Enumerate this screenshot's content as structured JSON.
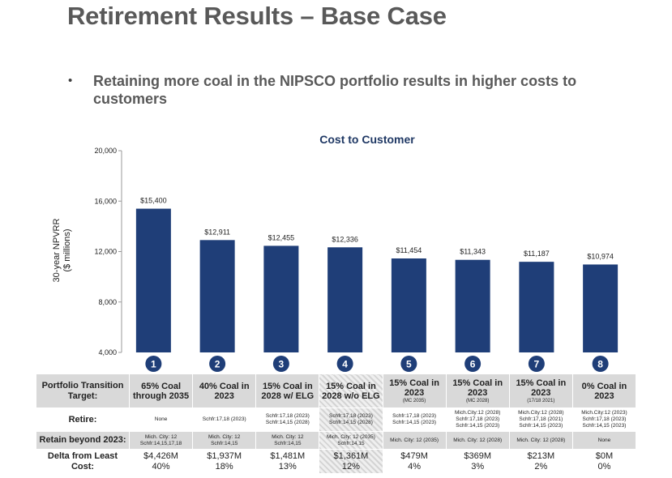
{
  "page": {
    "title": "Retirement Results – Base Case",
    "bullet_symbol": "•",
    "bullet": "Retaining more coal in the NIPSCO portfolio results in higher costs to customers"
  },
  "chart_data": {
    "type": "bar",
    "title": "Cost to Customer",
    "ylabel": "30-year NPVRR\n($ millions)",
    "xlabel": "",
    "ylim": [
      4000,
      20000
    ],
    "yticks": [
      4000,
      8000,
      12000,
      16000,
      20000
    ],
    "ytick_labels": [
      "4,000",
      "8,000",
      "12,000",
      "16,000",
      "20,000"
    ],
    "categories": [
      "1",
      "2",
      "3",
      "4",
      "5",
      "6",
      "7",
      "8"
    ],
    "values": [
      15400,
      12911,
      12455,
      12336,
      11454,
      11343,
      11187,
      10974
    ],
    "value_labels": [
      "$15,400",
      "$12,911",
      "$12,455",
      "$12,336",
      "$11,454",
      "$11,343",
      "$11,187",
      "$10,974"
    ],
    "bar_color": "#1f3e78",
    "badge_color": "#1f3e78",
    "grid": false
  },
  "table": {
    "row_labels": {
      "target": "Portfolio Transition Target:",
      "retire": "Retire:",
      "retain": "Retain beyond 2023:",
      "delta": "Delta from Least Cost:"
    },
    "columns": [
      {
        "target": "65% Coal through 2035",
        "target_sub": "",
        "retire": [
          "None"
        ],
        "retain": [
          "Mich. City: 12",
          "Schfr:14,15,17,18"
        ],
        "delta_amount": "$4,426M",
        "delta_pct": "40%"
      },
      {
        "target": "40% Coal in 2023",
        "target_sub": "",
        "retire": [
          "Schfr:17,18 (2023)"
        ],
        "retain": [
          "Mich. City: 12",
          "Schfr:14,15"
        ],
        "delta_amount": "$1,937M",
        "delta_pct": "18%"
      },
      {
        "target": "15% Coal in 2028 w/ ELG",
        "target_sub": "",
        "retire": [
          "Schfr:17,18 (2023)",
          "Schfr:14,15 (2028)"
        ],
        "retain": [
          "Mich. City: 12",
          "Schfr:14,15"
        ],
        "delta_amount": "$1,481M",
        "delta_pct": "13%"
      },
      {
        "target": "15% Coal in 2028 w/o ELG",
        "target_sub": "",
        "retire": [
          "Schfr:17,18 (2023)",
          "Schfr:14,15 (2028)"
        ],
        "retain": [
          "Mich. City: 12 (2035)",
          "Schfr:14,15"
        ],
        "delta_amount": "$1,361M",
        "delta_pct": "12%"
      },
      {
        "target": "15% Coal in 2023",
        "target_sub": "(MC 2035)",
        "retire": [
          "Schfr:17,18 (2023)",
          "Schfr:14,15 (2023)"
        ],
        "retain": [
          "Mich. City: 12 (2035)"
        ],
        "delta_amount": "$479M",
        "delta_pct": "4%"
      },
      {
        "target": "15% Coal in 2023",
        "target_sub": "(MC 2028)",
        "retire": [
          "Mich.City:12 (2028)",
          "Schfr:17,18 (2023)",
          "Schfr:14,15 (2023)"
        ],
        "retain": [
          "Mich. City: 12 (2028)"
        ],
        "delta_amount": "$369M",
        "delta_pct": "3%"
      },
      {
        "target": "15% Coal in 2023",
        "target_sub": "(17/18 2021)",
        "retire": [
          "Mich.City:12 (2028)",
          "Schfr:17,18 (2021)",
          "Schfr:14,15 (2023)"
        ],
        "retain": [
          "Mich. City: 12 (2028)"
        ],
        "delta_amount": "$213M",
        "delta_pct": "2%"
      },
      {
        "target": "0% Coal in 2023",
        "target_sub": "",
        "retire": [
          "Mich.City:12 (2023)",
          "Schfr:17,18 (2023)",
          "Schfr:14,15 (2023)"
        ],
        "retain": [
          "None"
        ],
        "delta_amount": "$0M",
        "delta_pct": "0%"
      }
    ]
  }
}
